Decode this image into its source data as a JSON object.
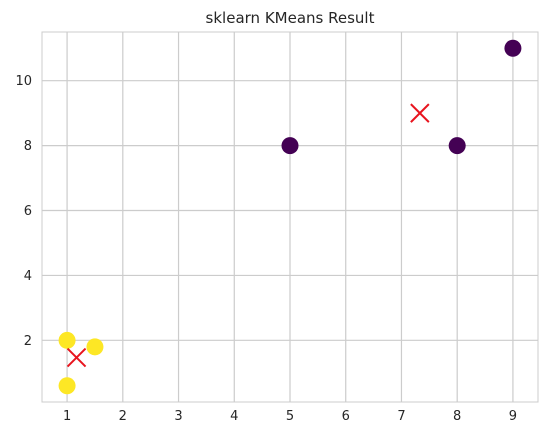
{
  "chart_data": {
    "type": "scatter",
    "title": "sklearn KMeans Result",
    "xlabel": "",
    "ylabel": "",
    "xlim": [
      0.55,
      9.45
    ],
    "ylim": [
      0.1,
      11.5
    ],
    "xticks": [
      1,
      2,
      3,
      4,
      5,
      6,
      7,
      8,
      9
    ],
    "yticks": [
      2,
      4,
      6,
      8,
      10
    ],
    "grid": true,
    "legend": "none",
    "series": [
      {
        "marker": "circle",
        "points": [
          {
            "x": 1,
            "y": 2,
            "cluster": 1
          },
          {
            "x": 1.5,
            "y": 1.8,
            "cluster": 1
          },
          {
            "x": 5,
            "y": 8,
            "cluster": 0
          },
          {
            "x": 8,
            "y": 8,
            "cluster": 0
          },
          {
            "x": 1,
            "y": 0.6,
            "cluster": 1
          },
          {
            "x": 9,
            "y": 11,
            "cluster": 0
          }
        ]
      },
      {
        "marker": "x",
        "points": [
          {
            "x": 1.17,
            "y": 1.47
          },
          {
            "x": 7.33,
            "y": 9.0
          }
        ]
      }
    ],
    "colors": {
      "cluster0": "#440154",
      "cluster1": "#fde725",
      "centroid": "#e8141e",
      "grid": "#cccccc",
      "axis": "#cccccc"
    }
  }
}
